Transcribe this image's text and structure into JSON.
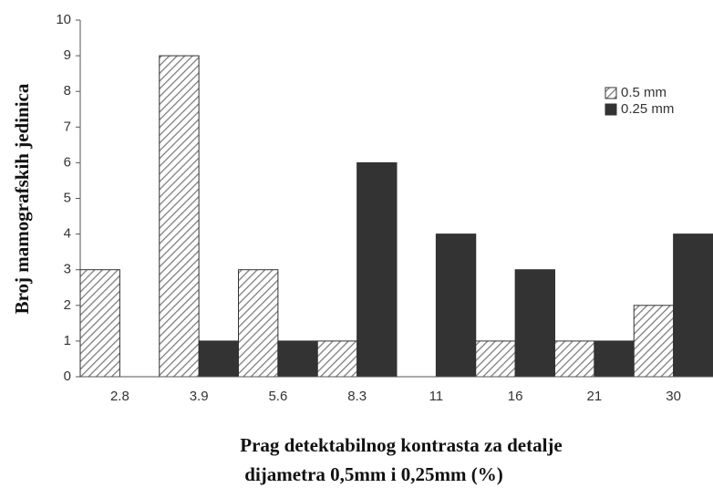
{
  "chart_data": {
    "type": "bar",
    "xlabel": [
      "Prag detektabilnog kontrasta za detalje",
      "dijametra 0,5mm i 0,25mm (%)"
    ],
    "ylabel": "Broj mamografskih jedinica",
    "categories": [
      "2.8",
      "3.9",
      "5.6",
      "8.3",
      "11",
      "16",
      "21",
      "30"
    ],
    "series": [
      {
        "name": "0.5 mm",
        "color": "#7a7a7a",
        "pattern": "hatch",
        "values": [
          3,
          9,
          3,
          1,
          0,
          1,
          1,
          2
        ]
      },
      {
        "name": "0.25 mm",
        "color": "#333333",
        "values": [
          0,
          1,
          1,
          6,
          4,
          3,
          1,
          4
        ]
      }
    ],
    "ylim": [
      0,
      10
    ],
    "yticks": [
      0,
      1,
      2,
      3,
      4,
      5,
      6,
      7,
      8,
      9,
      10
    ],
    "legend": "upper right"
  }
}
